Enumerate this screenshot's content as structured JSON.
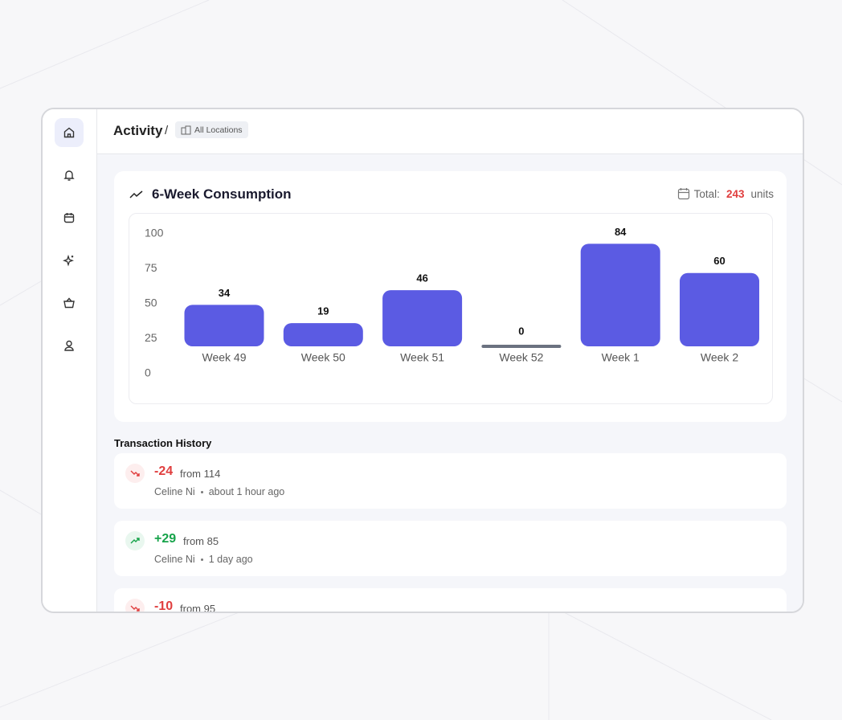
{
  "header": {
    "title": "Activity",
    "separator": "/",
    "location": "All Locations"
  },
  "card": {
    "title": "6-Week Consumption",
    "total_label": "Total:",
    "total_value": "243",
    "total_unit": "units"
  },
  "chart_data": {
    "type": "bar",
    "categories": [
      "Week 49",
      "Week 50",
      "Week 51",
      "Week 52",
      "Week 1",
      "Week 2"
    ],
    "values": [
      34,
      19,
      46,
      0,
      84,
      60
    ],
    "color": "#5b5be3",
    "ylim": [
      0,
      100
    ],
    "yticks": [
      0,
      25,
      50,
      75,
      100
    ]
  },
  "transactions": {
    "title": "Transaction History",
    "items": [
      {
        "change": "-24",
        "from": "from 114",
        "user": "Celine Ni",
        "time": "about 1 hour ago"
      },
      {
        "change": "+29",
        "from": "from 85",
        "user": "Celine Ni",
        "time": "1 day ago"
      },
      {
        "change": "-10",
        "from": "from 95"
      }
    ]
  }
}
